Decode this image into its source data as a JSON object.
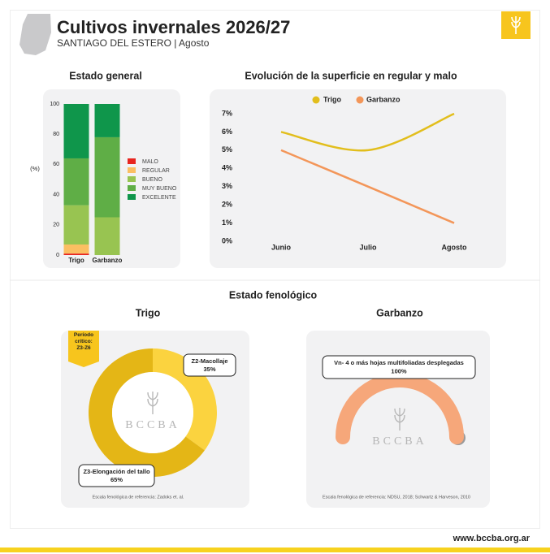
{
  "header": {
    "title": "Cultivos invernales 2026/27",
    "subtitle": "SANTIAGO DEL ESTERO | Agosto"
  },
  "section_title": "Estado fenológico",
  "watermark": "BCCBA",
  "footer": "www.bccba.org.ar",
  "chart_data": [
    {
      "type": "bar",
      "stacked": true,
      "title": "Estado general",
      "y_label": "(%)",
      "categories": [
        "Trigo",
        "Garbanzo"
      ],
      "ylim": [
        0,
        100
      ],
      "yticks": [
        0,
        20,
        40,
        60,
        80,
        100
      ],
      "series": [
        {
          "name": "MALO",
          "color": "#e8251f",
          "values": [
            1,
            0
          ]
        },
        {
          "name": "REGULAR",
          "color": "#fbbf62",
          "values": [
            6,
            0
          ]
        },
        {
          "name": "BUENO",
          "color": "#98c451",
          "values": [
            26,
            25
          ]
        },
        {
          "name": "MUY BUENO",
          "color": "#5fae46",
          "values": [
            31,
            53
          ]
        },
        {
          "name": "EXCELENTE",
          "color": "#0f964b",
          "values": [
            36,
            22
          ]
        }
      ]
    },
    {
      "type": "line",
      "title": "Evolución de la superficie en regular y malo",
      "categories": [
        "Junio",
        "Julio",
        "Agosto"
      ],
      "ylim": [
        0,
        7
      ],
      "yticks": [
        {
          "value": 0,
          "label": "0%"
        },
        {
          "value": 1,
          "label": "1%"
        },
        {
          "value": 2,
          "label": "2%"
        },
        {
          "value": 3,
          "label": "3%"
        },
        {
          "value": 4,
          "label": "4%"
        },
        {
          "value": 5,
          "label": "5%"
        },
        {
          "value": 6,
          "label": "6%"
        },
        {
          "value": 7,
          "label": "7%"
        }
      ],
      "series": [
        {
          "name": "Trigo",
          "color": "#e2be1c",
          "values": [
            6,
            5,
            7
          ]
        },
        {
          "name": "Garbanzo",
          "color": "#f39659",
          "values": [
            5,
            3,
            1
          ]
        }
      ]
    },
    {
      "type": "pie",
      "title": "Trigo",
      "categories": [
        "Z2-Macollaje",
        "Z3-Elongación del tallo"
      ],
      "values": [
        35,
        65
      ],
      "value_labels": [
        "35%",
        "65%"
      ],
      "colors": [
        "#fbd33f",
        "#e4b616"
      ],
      "annotation": "Período crítico: Z3-Z6",
      "note": "Escala fenológica de referencia: Zadoks et. al."
    },
    {
      "type": "gauge",
      "title": "Garbanzo",
      "categories": [
        "Vn- 4 o más hojas multifoliadas desplegadas"
      ],
      "values": [
        100
      ],
      "value_labels": [
        "100%"
      ],
      "colors": [
        "#f6a77a"
      ],
      "note": "Escala fenológica de referencia: NDSU, 2018; Schwartz & Harveson, 2010"
    }
  ]
}
